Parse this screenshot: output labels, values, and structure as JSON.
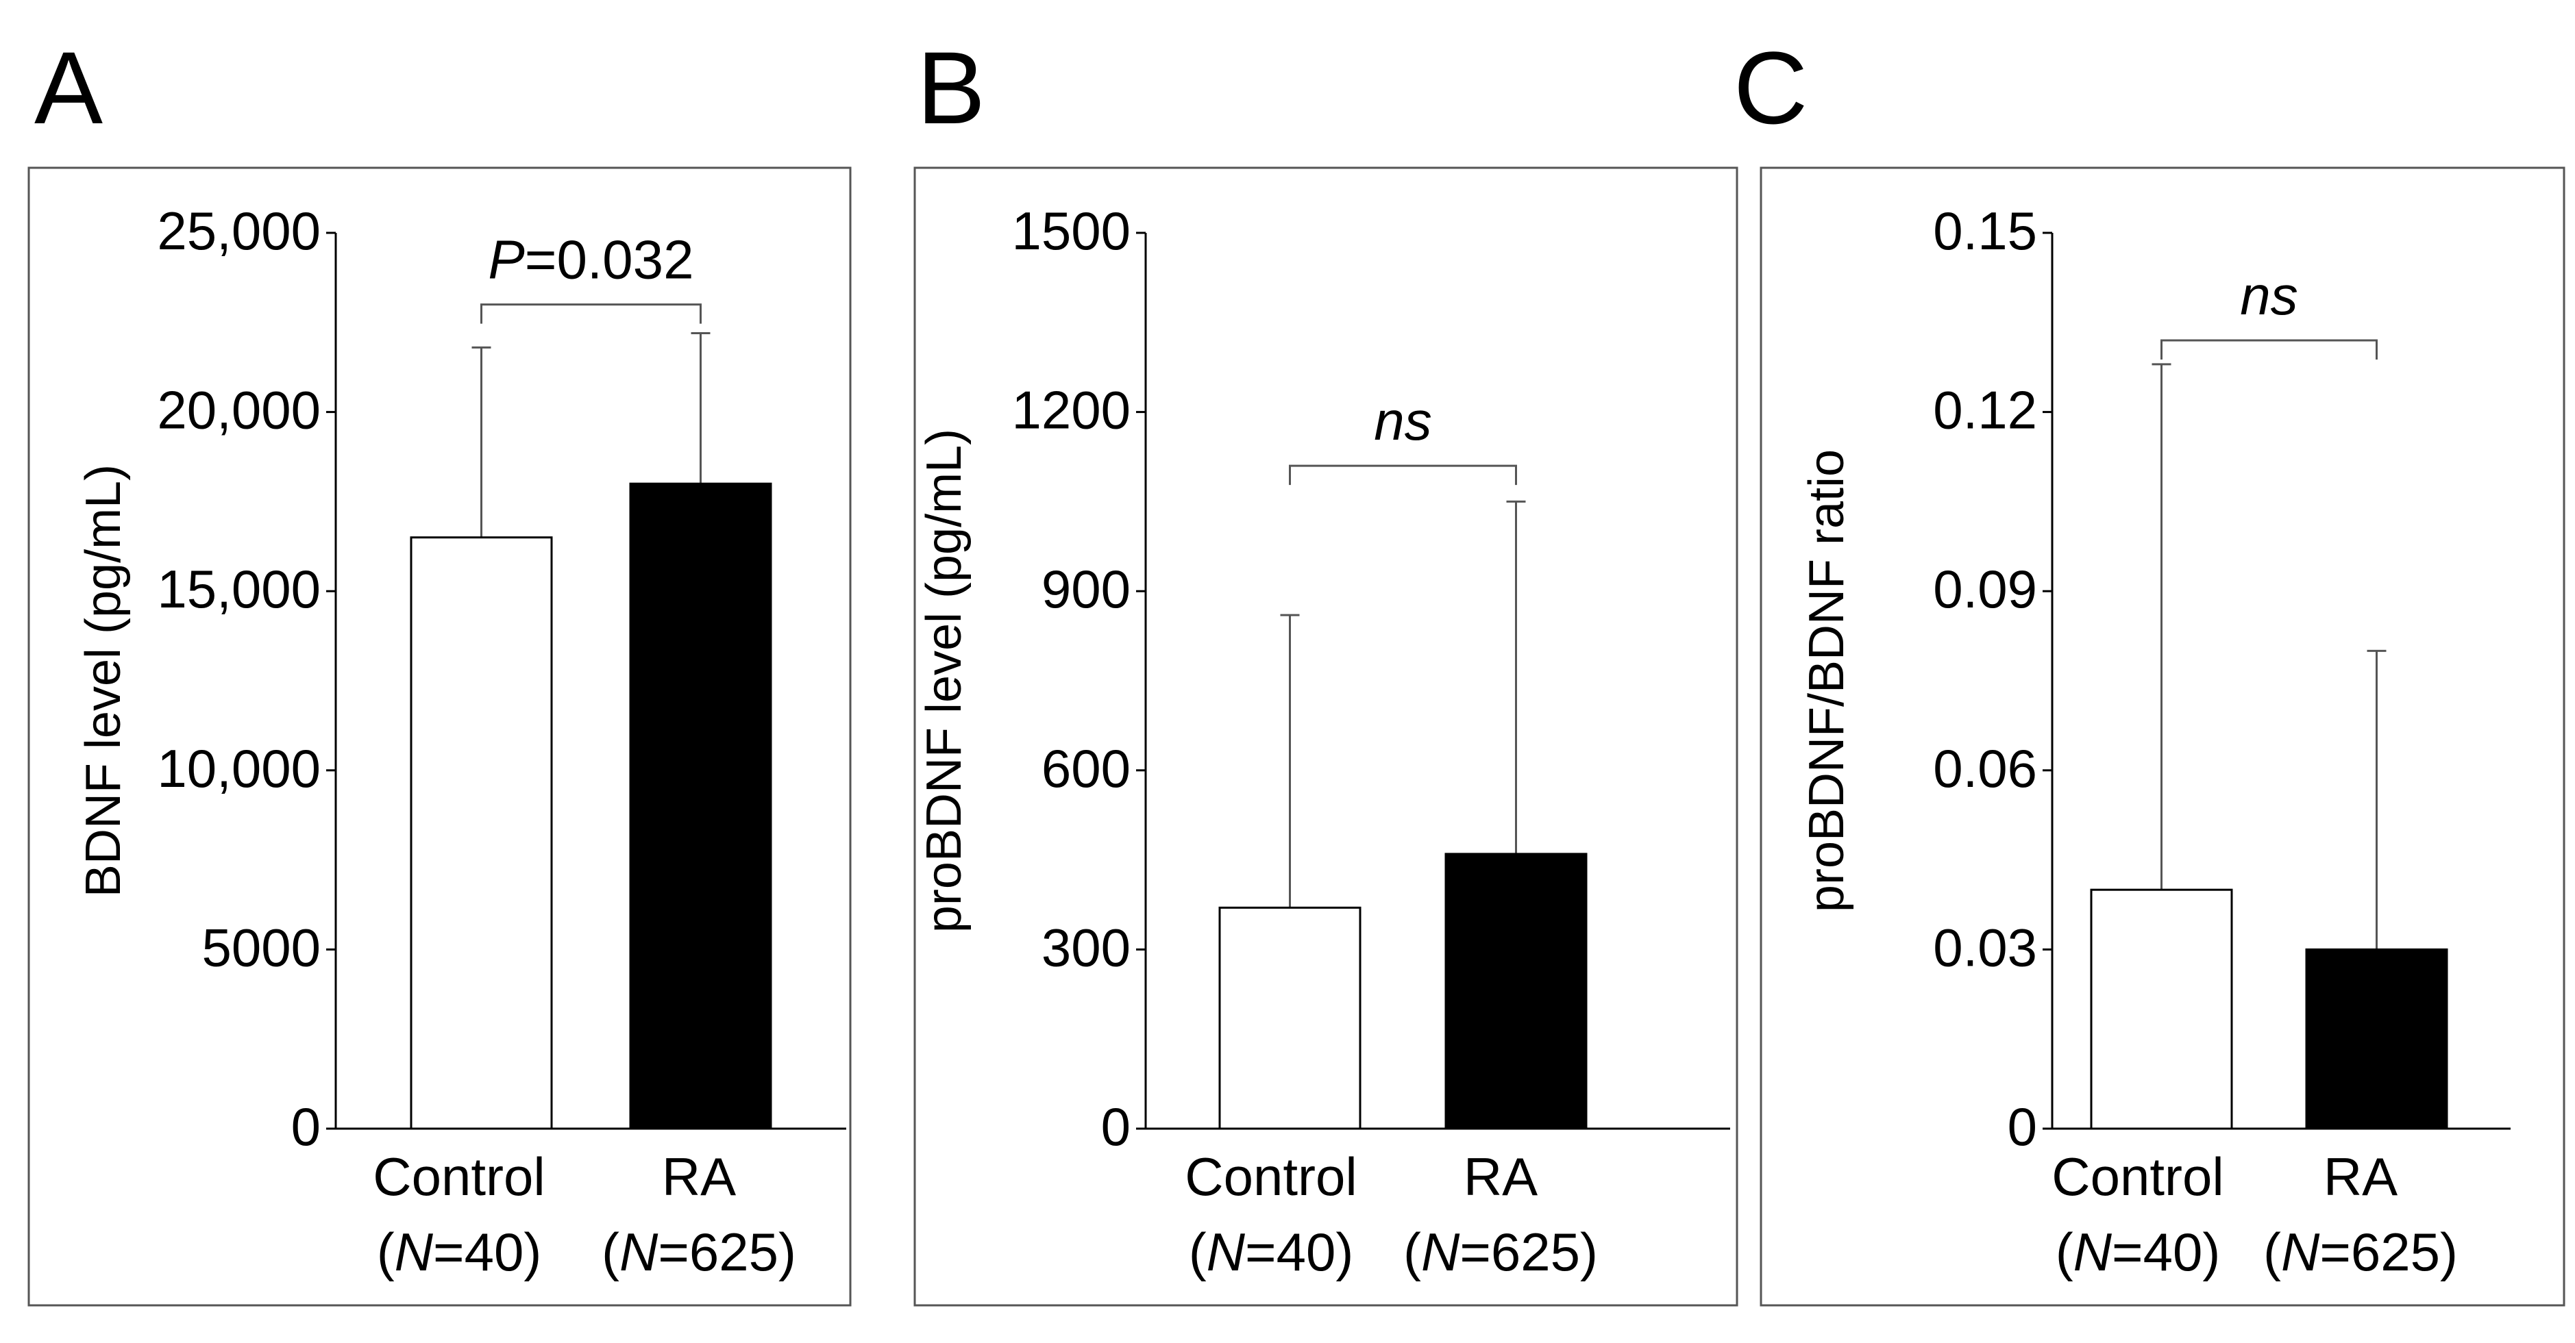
{
  "chart_data": [
    {
      "panel_label": "A",
      "type": "bar",
      "ylabel": "BDNF level (pg/mL)",
      "ylim": [
        0,
        25000
      ],
      "yticks": [
        0,
        5000,
        10000,
        15000,
        20000,
        25000
      ],
      "ytick_labels": [
        "0",
        "5000",
        "10,000",
        "15,000",
        "20,000",
        "25,000"
      ],
      "categories": [
        "Control",
        "RA"
      ],
      "n_labels": [
        "N=40",
        "N=625"
      ],
      "values": [
        16500,
        18000
      ],
      "error_upper": [
        21800,
        22200
      ],
      "bar_colors": [
        "#ffffff",
        "#000000"
      ],
      "annotation": {
        "italic_part": "P",
        "rest": "=0.032"
      },
      "bracket_y": 23000
    },
    {
      "panel_label": "B",
      "type": "bar",
      "ylabel": "proBDNF level (pg/mL)",
      "ylim": [
        0,
        1500
      ],
      "yticks": [
        0,
        300,
        600,
        900,
        1200,
        1500
      ],
      "ytick_labels": [
        "0",
        "300",
        "600",
        "900",
        "1200",
        "1500"
      ],
      "categories": [
        "Control",
        "RA"
      ],
      "n_labels": [
        "N=40",
        "N=625"
      ],
      "values": [
        370,
        460
      ],
      "error_upper": [
        860,
        1050
      ],
      "bar_colors": [
        "#ffffff",
        "#000000"
      ],
      "annotation": {
        "italic_part": "ns",
        "rest": ""
      },
      "bracket_y": 1110
    },
    {
      "panel_label": "C",
      "type": "bar",
      "ylabel": "proBDNF/BDNF ratio",
      "ylim": [
        0,
        0.15
      ],
      "yticks": [
        0,
        0.03,
        0.06,
        0.09,
        0.12,
        0.15
      ],
      "ytick_labels": [
        "0",
        "0.03",
        "0.06",
        "0.09",
        "0.12",
        "0.15"
      ],
      "categories": [
        "Control",
        "RA"
      ],
      "n_labels": [
        "N=40",
        "N=625"
      ],
      "values": [
        0.04,
        0.03
      ],
      "error_upper": [
        0.128,
        0.08
      ],
      "bar_colors": [
        "#ffffff",
        "#000000"
      ],
      "annotation": {
        "italic_part": "ns",
        "rest": ""
      },
      "bracket_y": 0.132
    }
  ]
}
